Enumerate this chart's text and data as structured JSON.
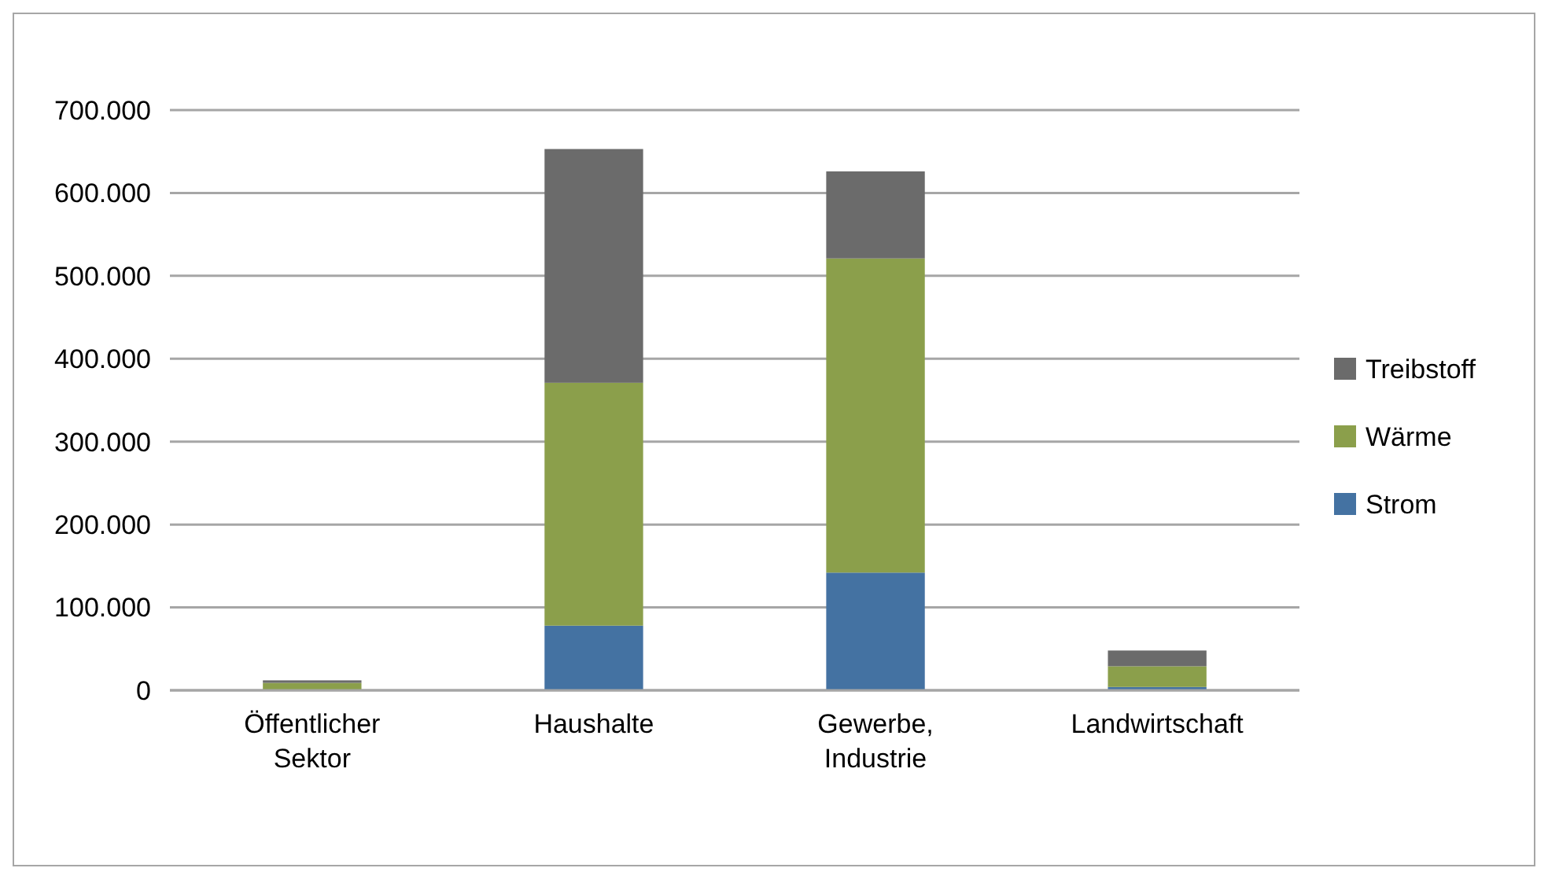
{
  "chart_data": {
    "type": "bar",
    "stacked": true,
    "categories": [
      "Öffentlicher Sektor",
      "Haushalte",
      "Gewerbe, Industrie",
      "Landwirtschaft"
    ],
    "series": [
      {
        "name": "Strom",
        "color": "#4472a2",
        "values": [
          null,
          78000,
          142000,
          4000
        ]
      },
      {
        "name": "Wärme",
        "color": "#8b9f4b",
        "values": [
          9000,
          293000,
          379000,
          25000
        ]
      },
      {
        "name": "Treibstoff",
        "color": "#6b6b6b",
        "values": [
          3000,
          282000,
          105000,
          19000
        ]
      }
    ],
    "ylim": [
      0,
      700000
    ],
    "yticks": [
      0,
      {
        "value": 100000,
        "label": "100.000"
      },
      {
        "value": 200000,
        "label": "200.000"
      },
      {
        "value": 300000,
        "label": "300.000"
      },
      {
        "value": 400000,
        "label": "400.000"
      },
      {
        "value": 500000,
        "label": "500.000"
      },
      {
        "value": 600000,
        "label": "600.000"
      },
      {
        "value": 700000,
        "label": "700.000"
      }
    ],
    "grid": "y",
    "legend": "right"
  }
}
